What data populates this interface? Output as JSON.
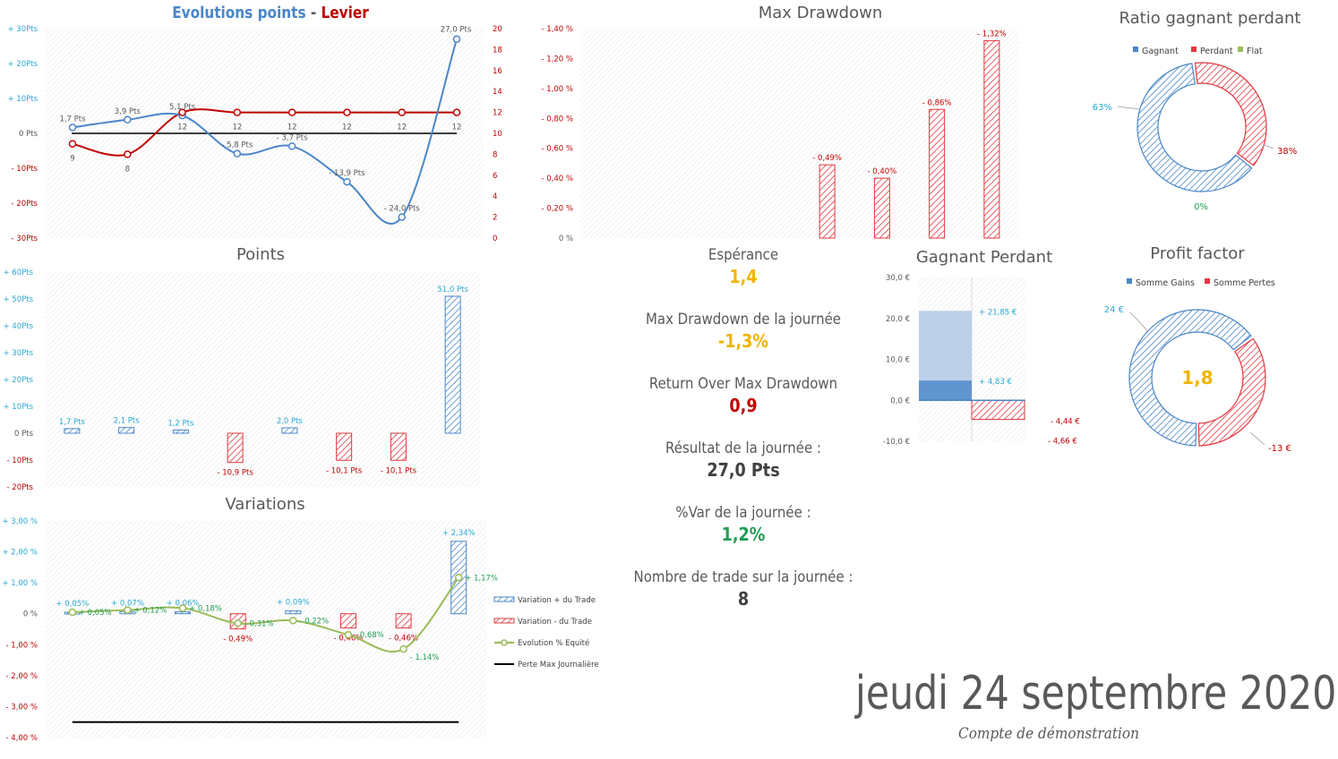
{
  "colors": {
    "blue": "#4a86c8",
    "red": "#c00000",
    "red_bar": "#e0383f",
    "yellow": "#f0b400",
    "green": "#1f9e52",
    "olive": "#9bbb59",
    "cyan": "#2aa9d4",
    "gray": "#595959",
    "black": "#000000"
  },
  "chart_data": [
    {
      "id": "evolution",
      "type": "line",
      "title_part1": "Evolutions points",
      "title_sep": " - ",
      "title_part2": "Levier",
      "y_left": {
        "range": [
          -30,
          30
        ],
        "ticks": [
          "+ 30Pts",
          "+ 20Pts",
          "+ 10Pts",
          "0 Pts",
          "- 10Pts",
          "- 20Pts",
          "- 30Pts"
        ]
      },
      "y_right": {
        "range": [
          0,
          20
        ],
        "ticks": [
          "20",
          "18",
          "16",
          "14",
          "12",
          "10",
          "8",
          "6",
          "4",
          "2",
          "0"
        ]
      },
      "series": [
        {
          "name": "Points",
          "values": [
            1.7,
            3.9,
            5.1,
            -5.8,
            -3.7,
            -13.9,
            -24.0,
            27.0
          ],
          "labels": [
            "1,7 Pts",
            "3,9 Pts",
            "5,1 Pts",
            "- 5,8 Pts",
            "- 3,7 Pts",
            "- 13,9 Pts",
            "- 24,0 Pts",
            "27,0 Pts"
          ]
        },
        {
          "name": "Levier",
          "values": [
            9,
            8,
            12,
            12,
            12,
            12,
            12,
            12
          ],
          "labels": [
            "9",
            "8",
            "12",
            "12",
            "12",
            "12",
            "12",
            "12"
          ]
        }
      ]
    },
    {
      "id": "drawdown",
      "type": "bar",
      "title": "Max Drawdown",
      "y_ticks": [
        "- 1,40 %",
        "- 1,20 %",
        "- 1,00 %",
        "- 0,80 %",
        "- 0,60 %",
        "- 0,40 %",
        "- 0,20 %",
        "0 %"
      ],
      "ylim": [
        0,
        1.4
      ],
      "values": [
        0,
        0,
        0,
        0,
        0.49,
        0.4,
        0.86,
        1.32
      ],
      "labels": [
        "",
        "",
        "",
        "",
        "- 0,49%",
        "- 0,40%",
        "- 0,86%",
        "- 1,32%"
      ]
    },
    {
      "id": "points",
      "type": "bar",
      "title": "Points",
      "ylim": [
        -20,
        60
      ],
      "y_ticks": [
        "+ 60Pts",
        "+ 50Pts",
        "+ 40Pts",
        "+ 30Pts",
        "+ 20Pts",
        "+ 10Pts",
        "0 Pts",
        "- 10Pts",
        "- 20Pts"
      ],
      "values": [
        1.7,
        2.1,
        1.2,
        -10.9,
        2.0,
        -10.1,
        -10.1,
        51.0
      ],
      "labels": [
        "1,7 Pts",
        "2,1 Pts",
        "1,2 Pts",
        "- 10,9 Pts",
        "2,0 Pts",
        "- 10,1 Pts",
        "- 10,1 Pts",
        "51,0 Pts"
      ]
    },
    {
      "id": "variations",
      "type": "bar",
      "title": "Variations",
      "ylim": [
        -4,
        3
      ],
      "y_ticks": [
        "+ 3,00 %",
        "+ 2,00 %",
        "+ 1,00 %",
        "0 %",
        "- 1,00 %",
        "- 2,00 %",
        "- 3,00 %",
        "- 4,00 %"
      ],
      "bars": [
        0.05,
        0.07,
        0.06,
        -0.49,
        0.09,
        -0.46,
        -0.46,
        2.34
      ],
      "bar_labels": [
        "+ 0,05%",
        "+ 0,07%",
        "+ 0,06%",
        "- 0,49%",
        "+ 0,09%",
        "- 0,46%",
        "- 0,46%",
        "+ 2,34%"
      ],
      "equity": [
        0.05,
        0.12,
        0.18,
        -0.31,
        -0.22,
        -0.68,
        -1.14,
        1.17
      ],
      "equity_labels": [
        "+ 0,05%",
        "+ 0,12%",
        "+ 0,18%",
        "- 0,31%",
        "- 0,22%",
        "- 0,68%",
        "- 1,14%",
        "+ 1,17%"
      ],
      "max_loss": -3.5,
      "legend": [
        "Variation + du Trade",
        "Variation - du Trade",
        "Evolution % Equité",
        "Perte Max Journalière"
      ]
    },
    {
      "id": "gagnant_perdant",
      "type": "bar",
      "title": "Gagnant Perdant",
      "ylim": [
        -10,
        30
      ],
      "y_ticks": [
        "30,0 €",
        "20,0 €",
        "10,0 €",
        "0,0 €",
        "-10,0 €"
      ],
      "gain_total": 21.85,
      "gain_avg": 4.83,
      "loss_total": -4.66,
      "loss_avg": -4.44,
      "labels": {
        "gain_total": "+ 21,85 €",
        "gain_avg": "+ 4,83 €",
        "loss_avg": "- 4,44 €",
        "loss_total": "- 4,66 €"
      }
    },
    {
      "id": "ratio",
      "type": "pie",
      "title": "Ratio gagnant perdant",
      "legend": [
        "Gagnant",
        "Perdant",
        "Flat"
      ],
      "values": [
        63,
        38,
        0
      ],
      "labels": [
        "63%",
        "38%",
        "0%"
      ]
    },
    {
      "id": "profit_factor",
      "type": "pie",
      "title": "Profit factor",
      "legend": [
        "Somme Gains",
        "Somme Pertes"
      ],
      "values": [
        24,
        13
      ],
      "labels": [
        "24 €",
        "-13 €"
      ],
      "center": "1,8"
    }
  ],
  "stats": {
    "esperance_label": "Espérance",
    "esperance_value": "1,4",
    "mdd_label": "Max Drawdown de la journée",
    "mdd_value": "-1,3%",
    "romdd_label": "Return Over Max Drawdown",
    "romdd_value": "0,9",
    "result_label": "Résultat de la journée :",
    "result_value": "27,0 Pts",
    "var_label": "%Var de la journée :",
    "var_value": "1,2%",
    "trades_label": "Nombre de trade sur la journée :",
    "trades_value": "8"
  },
  "footer": {
    "date": "jeudi 24 septembre 2020",
    "account": "Compte de démonstration"
  }
}
